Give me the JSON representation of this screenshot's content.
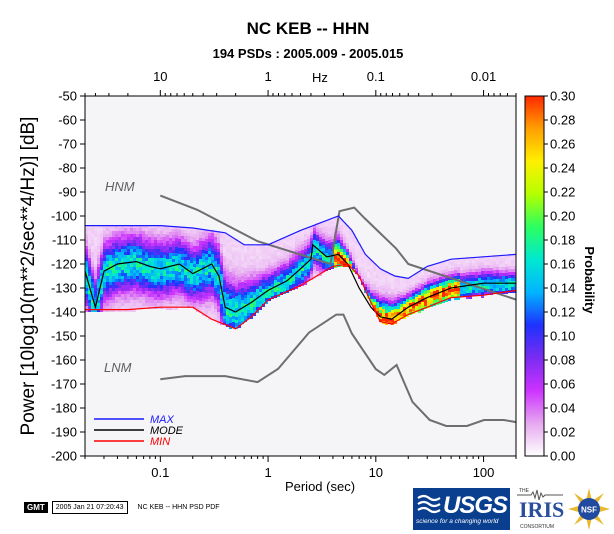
{
  "chart_data": {
    "type": "heatmap",
    "title": "NC KEB -- HHN",
    "subtitle": "194 PSDs : 2005.009 - 2005.015",
    "xlabel": "Period (sec)",
    "ylabel": "Power [10log10(m**2/sec**4/Hz)] [dB]",
    "top_axis_label": "Hz",
    "x_scale": "log",
    "xlim": [
      0.02,
      200
    ],
    "ylim": [
      -200,
      -50
    ],
    "x_ticks": [
      0.1,
      1,
      10,
      100
    ],
    "x_tick_labels": [
      "0.1",
      "1",
      "10",
      "100"
    ],
    "top_ticks": [
      10,
      1,
      0.1,
      0.01
    ],
    "top_tick_labels": [
      "10",
      "1",
      "0.1",
      "0.01"
    ],
    "y_ticks": [
      -50,
      -60,
      -70,
      -80,
      -90,
      -100,
      -110,
      -120,
      -130,
      -140,
      -150,
      -160,
      -170,
      -180,
      -190,
      -200
    ],
    "y_tick_labels": [
      "-50",
      "-60",
      "-70",
      "-80",
      "-90",
      "-100",
      "-110",
      "-120",
      "-130",
      "-140",
      "-150",
      "-160",
      "-170",
      "-180",
      "-190",
      "-200"
    ],
    "colorbar": {
      "label": "Probability",
      "range": [
        0,
        0.3
      ],
      "ticks": [
        0.0,
        0.02,
        0.04,
        0.06,
        0.08,
        0.1,
        0.12,
        0.14,
        0.16,
        0.18,
        0.2,
        0.22,
        0.24,
        0.26,
        0.28,
        0.3
      ],
      "tick_labels": [
        "0.00",
        "0.02",
        "0.04",
        "0.06",
        "0.08",
        "0.10",
        "0.12",
        "0.14",
        "0.16",
        "0.18",
        "0.20",
        "0.22",
        "0.24",
        "0.26",
        "0.28",
        "0.30"
      ],
      "colors": [
        "#ffffff",
        "#e6a8f0",
        "#cc33ff",
        "#7a2cf0",
        "#1e32ff",
        "#00b4ff",
        "#00e8d0",
        "#2cff60",
        "#b4ff00",
        "#fff000",
        "#ffa000",
        "#ff2800"
      ]
    },
    "legend": {
      "placement": "bottom-left",
      "entries": [
        {
          "name": "MAX",
          "color": "#1a1aff"
        },
        {
          "name": "MODE",
          "color": "#000000"
        },
        {
          "name": "MIN",
          "color": "#ff0000"
        }
      ]
    },
    "reference_labels": {
      "hnm": "HNM",
      "lnm": "LNM"
    },
    "series": [
      {
        "name": "HNM",
        "color": "#6e6e6e",
        "x": [
          0.1,
          0.22,
          0.8,
          3.8,
          4.6,
          6.3,
          7.9,
          15.4,
          20,
          354.8
        ],
        "y": [
          -91.5,
          -97.4,
          -110.5,
          -120,
          -98,
          -96.5,
          -101,
          -113.5,
          -120,
          -138.5
        ]
      },
      {
        "name": "LNM",
        "color": "#6e6e6e",
        "x": [
          0.1,
          0.17,
          0.4,
          0.8,
          1.24,
          2.4,
          4.3,
          5,
          6,
          10,
          12,
          15.6,
          21.9,
          31.6,
          45,
          70,
          101,
          154,
          328
        ],
        "y": [
          -168,
          -166.7,
          -166.7,
          -169.2,
          -163.7,
          -148.6,
          -141.1,
          -141.1,
          -149,
          -163.8,
          -166.2,
          -162.1,
          -177.5,
          -185,
          -187.5,
          -187.5,
          -185,
          -185,
          -187.5
        ]
      },
      {
        "name": "MAX",
        "color": "#1a1aff",
        "x": [
          0.02,
          0.05,
          0.1,
          0.2,
          0.4,
          0.6,
          1.0,
          2.0,
          3.0,
          4.5,
          6.0,
          8.0,
          11,
          15,
          20,
          30,
          50,
          100,
          200
        ],
        "y": [
          -104,
          -104,
          -104,
          -105,
          -107,
          -112,
          -112,
          -106,
          -103,
          -100,
          -106,
          -116,
          -122,
          -125,
          -126,
          -121,
          -118,
          -117,
          -116
        ]
      },
      {
        "name": "MODE",
        "color": "#000000",
        "x": [
          0.02,
          0.025,
          0.03,
          0.04,
          0.06,
          0.08,
          0.1,
          0.15,
          0.2,
          0.3,
          0.35,
          0.4,
          0.5,
          0.7,
          1.0,
          1.5,
          2.0,
          2.5,
          2.6,
          3.5,
          4.5,
          5.5,
          7.0,
          9.0,
          11,
          14,
          20,
          30,
          50,
          100,
          200
        ],
        "y": [
          -123,
          -138,
          -123,
          -120,
          -119,
          -121,
          -122,
          -120,
          -124,
          -120,
          -125,
          -138,
          -140,
          -136,
          -131,
          -127,
          -122,
          -118,
          -112,
          -117,
          -116,
          -120,
          -130,
          -138,
          -142,
          -143,
          -138,
          -134,
          -130,
          -128,
          -128
        ]
      },
      {
        "name": "MIN",
        "color": "#ff0000",
        "x": [
          0.02,
          0.05,
          0.1,
          0.2,
          0.3,
          0.5,
          0.7,
          1.0,
          2.0,
          4.0,
          5.5,
          7.0,
          9.0,
          11,
          14,
          20,
          30,
          50,
          100,
          200
        ],
        "y": [
          -139,
          -139,
          -138,
          -138,
          -143,
          -147,
          -142,
          -135,
          -129,
          -121,
          -120,
          -125,
          -136,
          -144,
          -145,
          -141,
          -138,
          -134,
          -133,
          -131
        ]
      }
    ]
  },
  "footer": {
    "gmt_logo": "GMT",
    "timestamp": "2005 Jan 21 07:20:43",
    "caption": "NC KEB -- HHN PSD PDF"
  },
  "logos": {
    "usgs": "USGS",
    "usgs_tagline": "science for a changing world",
    "iris_the": "THE",
    "iris": "IRIS",
    "iris_consortium": "CONSORTIUM",
    "nsf": "NSF"
  }
}
